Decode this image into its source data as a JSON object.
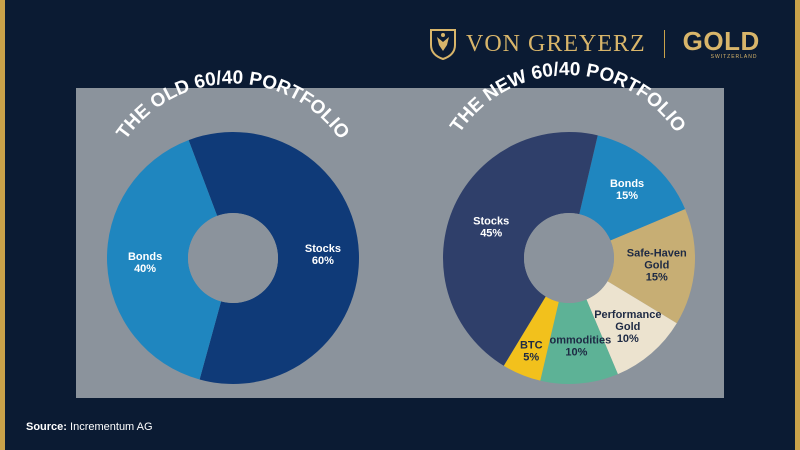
{
  "brand": {
    "name": "VON GREYERZ",
    "gold_logo": "GOLD",
    "gold_logo_sub": "SWITZERLAND",
    "colors": {
      "accent": "#c9a24a",
      "background": "#0b1b33",
      "panel": "#8b939c"
    }
  },
  "source": {
    "label": "Source:",
    "value": "Incrementum AG"
  },
  "chart_data": [
    {
      "type": "pie",
      "donut": true,
      "title": "THE OLD 60/40 PORTFOLIO",
      "slices": [
        {
          "label": "Stocks",
          "value": 60,
          "value_label": "60%",
          "color": "#0f3a78"
        },
        {
          "label": "Bonds",
          "value": 40,
          "value_label": "40%",
          "color": "#1f86bf"
        }
      ]
    },
    {
      "type": "pie",
      "donut": true,
      "title": "THE NEW 60/40 PORTFOLIO",
      "slices": [
        {
          "label": "Bonds",
          "value": 15,
          "value_label": "15%",
          "color": "#1f86bf"
        },
        {
          "label": "Safe-Haven Gold",
          "value": 15,
          "value_label": "15%",
          "color": "#c7ae74"
        },
        {
          "label": "Performance Gold",
          "value": 10,
          "value_label": "10%",
          "color": "#ece3cf"
        },
        {
          "label": "Commodities",
          "value": 10,
          "value_label": "10%",
          "color": "#5db296"
        },
        {
          "label": "BTC",
          "value": 5,
          "value_label": "5%",
          "color": "#f2c11c"
        },
        {
          "label": "Stocks",
          "value": 45,
          "value_label": "45%",
          "color": "#2f3f6a"
        }
      ]
    }
  ]
}
